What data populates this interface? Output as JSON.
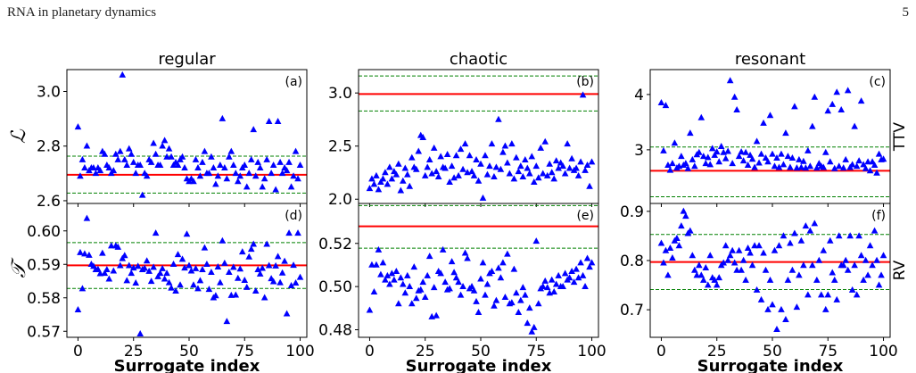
{
  "header": {
    "running_title": "RNA in planetary dynamics",
    "page_number": "5"
  },
  "column_titles": [
    "regular",
    "chaotic",
    "resonant"
  ],
  "row_labels": {
    "left": [
      "ℒ",
      "𝒯"
    ],
    "right": [
      "TTV",
      "RV"
    ]
  },
  "xlabel": "Surrogate index",
  "colors": {
    "marker": "#0000ff",
    "reference_line": "#ff0000",
    "bound_line": "#008000"
  },
  "chart_data": [
    {
      "type": "scatter",
      "panel": "(a)",
      "title": "regular",
      "ylabel": "ℒ",
      "xlim": [
        -5,
        103
      ],
      "ylim": [
        2.59,
        3.08
      ],
      "yticks": [
        2.6,
        2.8,
        3.0
      ],
      "yticklabels": [
        "2.6",
        "2.8",
        "3.0"
      ],
      "xticks": [
        0,
        25,
        50,
        75,
        100
      ],
      "hline": 2.695,
      "bounds": [
        2.628,
        2.763
      ],
      "y": [
        2.87,
        2.69,
        2.75,
        2.72,
        2.8,
        2.71,
        2.72,
        2.72,
        2.7,
        2.72,
        2.71,
        2.78,
        2.77,
        2.73,
        2.72,
        2.7,
        2.71,
        2.77,
        2.75,
        2.78,
        3.06,
        2.75,
        2.73,
        2.79,
        2.77,
        2.74,
        2.7,
        2.73,
        2.73,
        2.62,
        2.7,
        2.69,
        2.75,
        2.74,
        2.81,
        2.77,
        2.73,
        2.73,
        2.8,
        2.82,
        2.76,
        2.79,
        2.76,
        2.73,
        2.74,
        2.73,
        2.75,
        2.76,
        2.72,
        2.68,
        2.67,
        2.68,
        2.67,
        2.75,
        2.72,
        2.69,
        2.74,
        2.78,
        2.7,
        2.7,
        2.76,
        2.72,
        2.66,
        2.69,
        2.73,
        2.9,
        2.72,
        2.68,
        2.76,
        2.78,
        2.73,
        2.7,
        2.67,
        2.69,
        2.72,
        2.73,
        2.65,
        2.7,
        2.75,
        2.86,
        2.69,
        2.74,
        2.72,
        2.65,
        2.68,
        2.75,
        2.89,
        2.7,
        2.73,
        2.64,
        2.89,
        2.74,
        2.7,
        2.72,
        2.71,
        2.74,
        2.65,
        2.69,
        2.78,
        2.68,
        2.73
      ]
    },
    {
      "type": "scatter",
      "panel": "(b)",
      "title": "chaotic",
      "ylabel": "",
      "xlim": [
        -5,
        103
      ],
      "ylim": [
        1.96,
        3.22
      ],
      "yticks": [
        2.0,
        2.5,
        3.0
      ],
      "yticklabels": [
        "2.0",
        "2.5",
        "3.0"
      ],
      "xticks": [
        0,
        25,
        50,
        75,
        100
      ],
      "hline": 2.99,
      "bounds": [
        2.83,
        3.16
      ],
      "y": [
        2.1,
        2.19,
        2.14,
        2.22,
        2.09,
        2.16,
        2.19,
        2.25,
        2.14,
        2.3,
        2.19,
        2.26,
        2.23,
        2.33,
        2.08,
        2.17,
        2.29,
        2.23,
        2.12,
        2.39,
        2.3,
        2.28,
        2.45,
        2.6,
        2.58,
        2.22,
        2.3,
        2.37,
        2.24,
        2.48,
        2.26,
        2.21,
        2.4,
        2.3,
        2.29,
        2.42,
        2.16,
        2.31,
        2.2,
        2.41,
        2.22,
        2.47,
        2.28,
        2.52,
        2.25,
        2.41,
        2.26,
        2.22,
        2.37,
        2.17,
        2.33,
        2.01,
        2.41,
        2.23,
        2.31,
        2.52,
        2.21,
        2.3,
        2.75,
        2.28,
        2.44,
        2.5,
        2.34,
        2.24,
        2.52,
        2.19,
        2.39,
        2.26,
        2.31,
        2.21,
        2.37,
        2.29,
        2.24,
        2.4,
        2.16,
        2.31,
        2.2,
        2.48,
        2.24,
        2.54,
        2.22,
        2.33,
        2.25,
        2.19,
        2.36,
        2.29,
        2.34,
        2.31,
        2.24,
        2.52,
        2.29,
        2.38,
        2.27,
        2.29,
        2.22,
        2.35,
        2.98,
        2.27,
        2.32,
        2.12,
        2.35
      ]
    },
    {
      "type": "scatter",
      "panel": "(c)",
      "title": "resonant",
      "ylabel": "TTV",
      "xlim": [
        -5,
        103
      ],
      "ylim": [
        2.03,
        4.45
      ],
      "yticks": [
        3,
        4
      ],
      "yticklabels": [
        "3",
        "4"
      ],
      "xticks": [
        0,
        25,
        50,
        75,
        100
      ],
      "hline": 2.62,
      "bounds": [
        2.15,
        3.05
      ],
      "y": [
        3.85,
        2.98,
        3.8,
        2.72,
        2.63,
        2.75,
        3.12,
        2.67,
        2.7,
        2.88,
        2.72,
        2.75,
        2.66,
        3.3,
        2.82,
        2.7,
        2.91,
        2.95,
        3.58,
        2.88,
        2.75,
        2.86,
        2.73,
        3.02,
        2.9,
        2.96,
        2.78,
        3.06,
        2.95,
        2.84,
        2.97,
        4.25,
        2.75,
        3.95,
        3.72,
        2.88,
        2.96,
        2.8,
        2.95,
        2.72,
        2.9,
        2.83,
        2.68,
        3.15,
        2.76,
        2.92,
        3.48,
        2.85,
        2.78,
        3.62,
        2.92,
        2.7,
        2.85,
        2.68,
        2.92,
        2.73,
        3.3,
        2.88,
        2.68,
        2.85,
        3.78,
        2.67,
        2.82,
        2.68,
        2.79,
        2.67,
        2.98,
        2.7,
        3.42,
        3.95,
        2.67,
        2.75,
        2.7,
        2.68,
        2.95,
        3.7,
        2.78,
        3.82,
        2.66,
        4.04,
        2.7,
        3.72,
        2.67,
        2.82,
        4.07,
        2.68,
        2.73,
        3.42,
        2.7,
        2.8,
        3.88,
        2.73,
        2.66,
        2.78,
        2.62,
        2.78,
        2.72,
        2.58,
        2.92,
        2.82,
        2.83
      ]
    },
    {
      "type": "scatter",
      "panel": "(d)",
      "title": "",
      "ylabel": "𝒯",
      "xlim": [
        -5,
        103
      ],
      "ylim": [
        0.5682,
        0.6082
      ],
      "yticks": [
        0.57,
        0.58,
        0.59,
        0.6
      ],
      "yticklabels": [
        "0.57",
        "0.58",
        "0.59",
        "0.60"
      ],
      "xticks": [
        0,
        25,
        50,
        75,
        100
      ],
      "xticklabels": [
        "0",
        "25",
        "50",
        "75",
        "100"
      ],
      "hline": 0.5897,
      "bounds": [
        0.5828,
        0.5965
      ],
      "y": [
        0.5764,
        0.5935,
        0.5827,
        0.5931,
        0.6037,
        0.5927,
        0.59,
        0.5894,
        0.5884,
        0.5885,
        0.5872,
        0.5933,
        0.5873,
        0.5884,
        0.5856,
        0.5955,
        0.588,
        0.5955,
        0.5951,
        0.5896,
        0.5917,
        0.5926,
        0.5851,
        0.5896,
        0.5873,
        0.5889,
        0.5844,
        0.5894,
        0.5692,
        0.5884,
        0.5888,
        0.591,
        0.5879,
        0.5849,
        0.5891,
        0.5993,
        0.5863,
        0.5873,
        0.5887,
        0.5856,
        0.5873,
        0.5845,
        0.5829,
        0.59,
        0.582,
        0.5929,
        0.5838,
        0.5915,
        0.5889,
        0.599,
        0.5896,
        0.588,
        0.5838,
        0.5887,
        0.5827,
        0.5851,
        0.5884,
        0.5949,
        0.59,
        0.5825,
        0.5876,
        0.58,
        0.5806,
        0.5892,
        0.5845,
        0.597,
        0.5903,
        0.5729,
        0.5876,
        0.5807,
        0.5891,
        0.5808,
        0.5858,
        0.5886,
        0.5937,
        0.5852,
        0.5831,
        0.5922,
        0.5945,
        0.596,
        0.582,
        0.5884,
        0.5871,
        0.5888,
        0.58,
        0.596,
        0.5896,
        0.5857,
        0.5848,
        0.5895,
        0.5923,
        0.5845,
        0.5874,
        0.5909,
        0.5752,
        0.5993,
        0.5836,
        0.5897,
        0.5844,
        0.5993,
        0.5861
      ]
    },
    {
      "type": "scatter",
      "panel": "(e)",
      "title": "",
      "ylabel": "",
      "xlim": [
        -5,
        103
      ],
      "ylim": [
        0.4765,
        0.5385
      ],
      "yticks": [
        0.48,
        0.5,
        0.52
      ],
      "yticklabels": [
        "0.48",
        "0.50",
        "0.52"
      ],
      "xticks": [
        0,
        25,
        50,
        75,
        100
      ],
      "xticklabels": [
        "0",
        "25",
        "50",
        "75",
        "100"
      ],
      "hline": 0.5279,
      "bounds": [
        0.5178,
        0.5375
      ],
      "y": [
        0.489,
        0.51,
        0.4975,
        0.51,
        0.517,
        0.5055,
        0.511,
        0.503,
        0.505,
        0.501,
        0.506,
        0.503,
        0.507,
        0.492,
        0.504,
        0.501,
        0.497,
        0.505,
        0.5,
        0.492,
        0.509,
        0.4945,
        0.498,
        0.4985,
        0.502,
        0.495,
        0.505,
        0.514,
        0.486,
        0.4995,
        0.4865,
        0.507,
        0.506,
        0.517,
        0.502,
        0.4985,
        0.499,
        0.5115,
        0.5065,
        0.504,
        0.502,
        0.496,
        0.5,
        0.5155,
        0.513,
        0.499,
        0.5,
        0.498,
        0.493,
        0.488,
        0.5035,
        0.511,
        0.496,
        0.501,
        0.506,
        0.507,
        0.491,
        0.4935,
        0.5085,
        0.504,
        0.511,
        0.495,
        0.515,
        0.492,
        0.4925,
        0.508,
        0.497,
        0.488,
        0.4935,
        0.4995,
        0.496,
        0.483,
        0.49,
        0.479,
        0.481,
        0.521,
        0.492,
        0.499,
        0.5,
        0.5025,
        0.4995,
        0.497,
        0.503,
        0.4975,
        0.501,
        0.505,
        0.5,
        0.5,
        0.506,
        0.503,
        0.504,
        0.507,
        0.502,
        0.508,
        0.504,
        0.511,
        0.505,
        0.5,
        0.513,
        0.509,
        0.511
      ]
    },
    {
      "type": "scatter",
      "panel": "(f)",
      "title": "",
      "ylabel": "RV",
      "xlim": [
        -5,
        103
      ],
      "ylim": [
        0.644,
        0.916
      ],
      "yticks": [
        0.7,
        0.8,
        0.9
      ],
      "yticklabels": [
        "0.7",
        "0.8",
        "0.9"
      ],
      "xticks": [
        0,
        25,
        50,
        75,
        100
      ],
      "xticklabels": [
        "0",
        "25",
        "50",
        "75",
        "100"
      ],
      "hline": 0.797,
      "bounds": [
        0.741,
        0.853
      ],
      "y": [
        0.835,
        0.795,
        0.82,
        0.77,
        0.825,
        0.805,
        0.84,
        0.845,
        0.83,
        0.87,
        0.9,
        0.89,
        0.855,
        0.86,
        0.81,
        0.78,
        0.77,
        0.79,
        0.77,
        0.76,
        0.785,
        0.75,
        0.81,
        0.765,
        0.76,
        0.75,
        0.765,
        0.79,
        0.795,
        0.83,
        0.8,
        0.81,
        0.82,
        0.795,
        0.78,
        0.82,
        0.78,
        0.8,
        0.76,
        0.825,
        0.815,
        0.79,
        0.83,
        0.74,
        0.83,
        0.72,
        0.815,
        0.78,
        0.7,
        0.76,
        0.71,
        0.82,
        0.66,
        0.83,
        0.7,
        0.85,
        0.68,
        0.76,
        0.835,
        0.78,
        0.855,
        0.705,
        0.77,
        0.84,
        0.79,
        0.87,
        0.73,
        0.86,
        0.79,
        0.875,
        0.76,
        0.8,
        0.73,
        0.82,
        0.7,
        0.73,
        0.84,
        0.775,
        0.76,
        0.72,
        0.85,
        0.79,
        0.79,
        0.8,
        0.78,
        0.85,
        0.74,
        0.79,
        0.73,
        0.85,
        0.81,
        0.76,
        0.8,
        0.77,
        0.83,
        0.79,
        0.86,
        0.8,
        0.75,
        0.77,
        0.81
      ]
    }
  ]
}
